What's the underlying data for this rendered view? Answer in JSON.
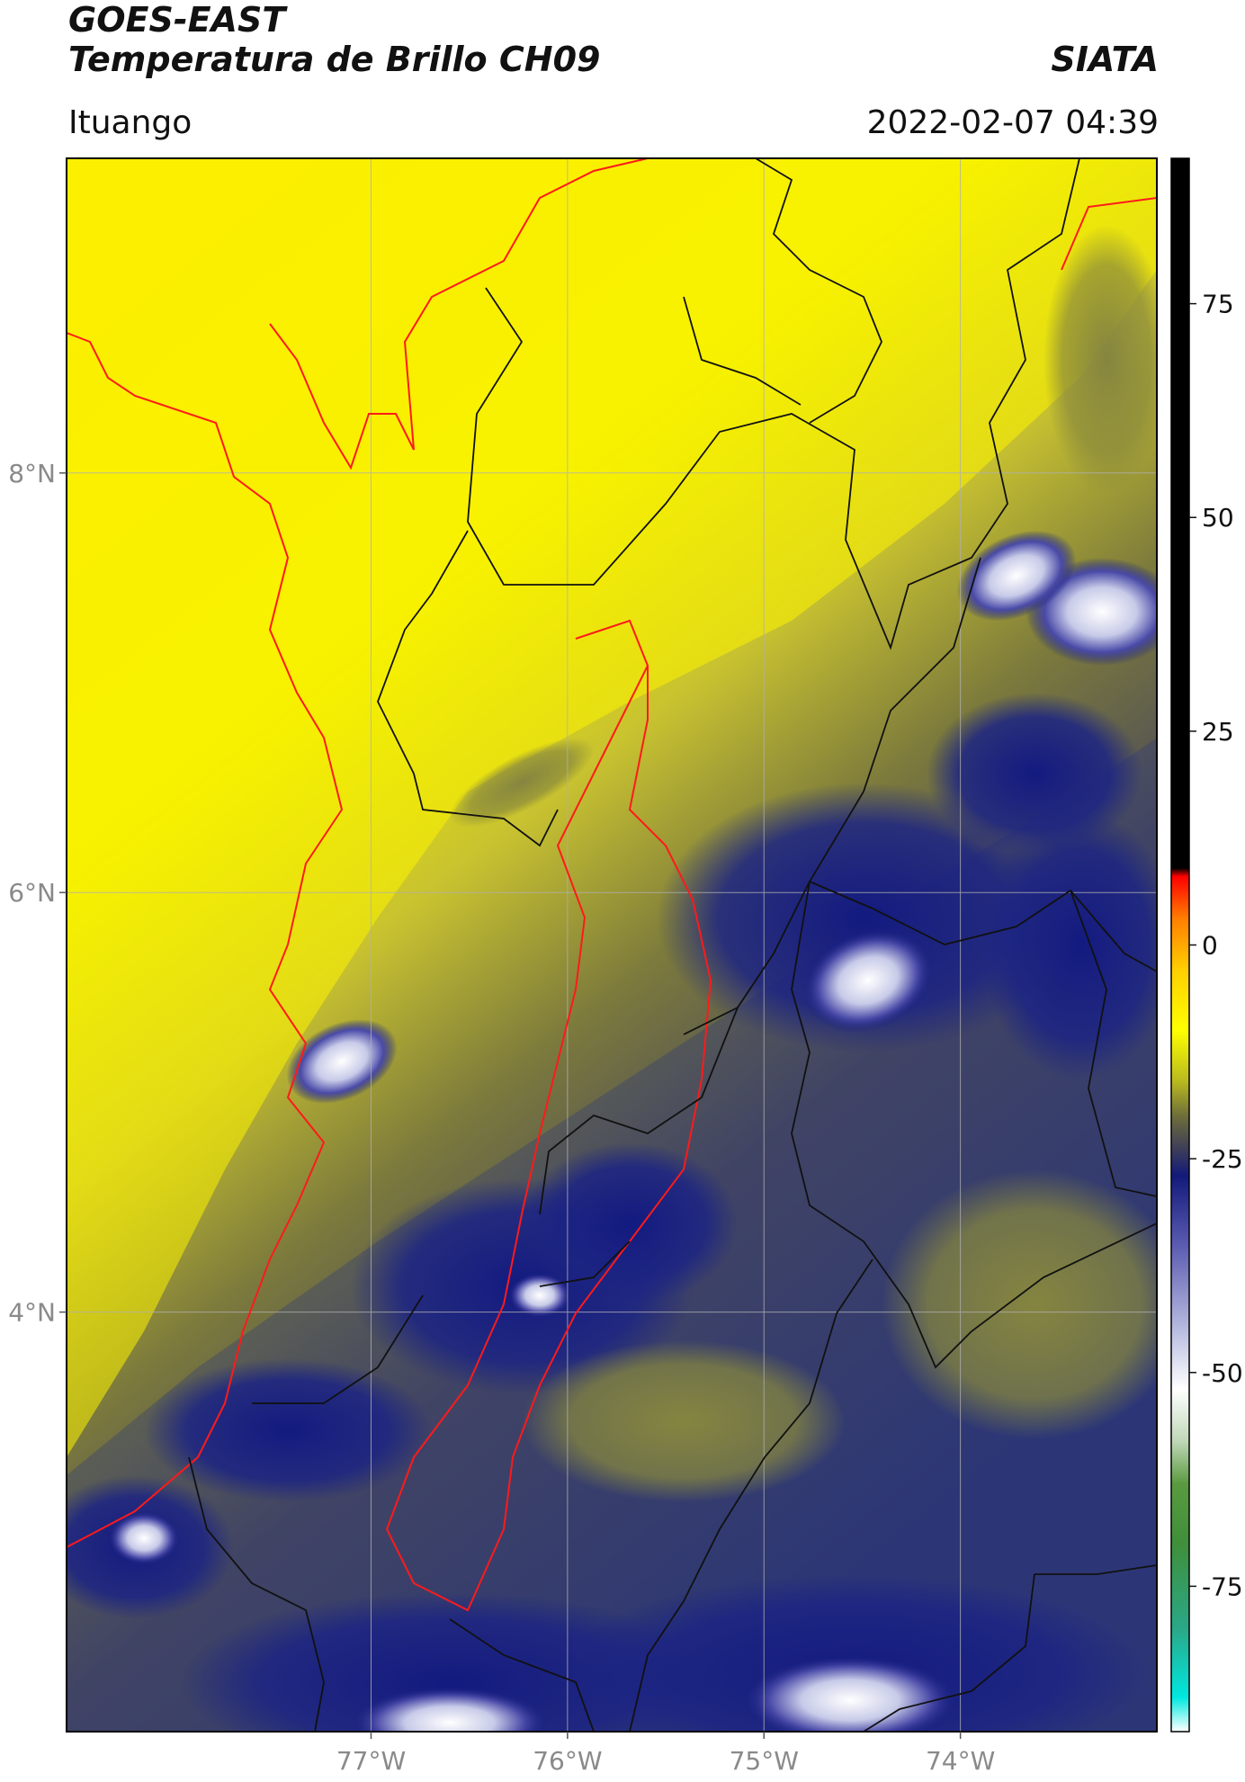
{
  "header": {
    "satellite": "GOES-EAST",
    "product": "Temperatura de Brillo CH09",
    "organization": "SIATA",
    "place": "Ituango",
    "timestamp": "2022-02-07 04:39"
  },
  "map": {
    "lon_range": [
      -78.55,
      -73.0
    ],
    "lat_range": [
      2.0,
      9.5
    ],
    "lon_ticks": [
      {
        "value": -77,
        "label": "77°W"
      },
      {
        "value": -76,
        "label": "76°W"
      },
      {
        "value": -75,
        "label": "75°W"
      },
      {
        "value": -74,
        "label": "74°W"
      }
    ],
    "lat_ticks": [
      {
        "value": 8,
        "label": "8°N"
      },
      {
        "value": 6,
        "label": "6°N"
      },
      {
        "value": 4,
        "label": "4°N"
      }
    ],
    "gridlines": true,
    "colors": {
      "frame": "#000000",
      "country_border": "#ff1a1a",
      "department_border": "#000000",
      "gridline": "#b0b0b0"
    }
  },
  "colorbar": {
    "range": [
      -92,
      92
    ],
    "ticks": [
      {
        "value": 75,
        "label": "75"
      },
      {
        "value": 50,
        "label": "50"
      },
      {
        "value": 25,
        "label": "25"
      },
      {
        "value": 0,
        "label": "0"
      },
      {
        "value": -25,
        "label": "-25"
      },
      {
        "value": -50,
        "label": "-50"
      },
      {
        "value": -75,
        "label": "-75"
      }
    ],
    "stops": [
      {
        "value": -92,
        "color": "#ffffff"
      },
      {
        "value": -88,
        "color": "#00e8e0"
      },
      {
        "value": -80,
        "color": "#2aa888"
      },
      {
        "value": -70,
        "color": "#3f8f3a"
      },
      {
        "value": -63,
        "color": "#5a9a40"
      },
      {
        "value": -58,
        "color": "#c0d8b8"
      },
      {
        "value": -52,
        "color": "#ffffff"
      },
      {
        "value": -45,
        "color": "#b8bce0"
      },
      {
        "value": -35,
        "color": "#5a5ab0"
      },
      {
        "value": -27,
        "color": "#121a7a"
      },
      {
        "value": -24,
        "color": "#3c3c5a"
      },
      {
        "value": -20,
        "color": "#6e6e3a"
      },
      {
        "value": -16,
        "color": "#b8b820"
      },
      {
        "value": -10,
        "color": "#ffff00"
      },
      {
        "value": -3,
        "color": "#ffd000"
      },
      {
        "value": 3,
        "color": "#ff8000"
      },
      {
        "value": 8,
        "color": "#ff0000"
      },
      {
        "value": 9,
        "color": "#000000"
      },
      {
        "value": 92,
        "color": "#000000"
      }
    ]
  }
}
